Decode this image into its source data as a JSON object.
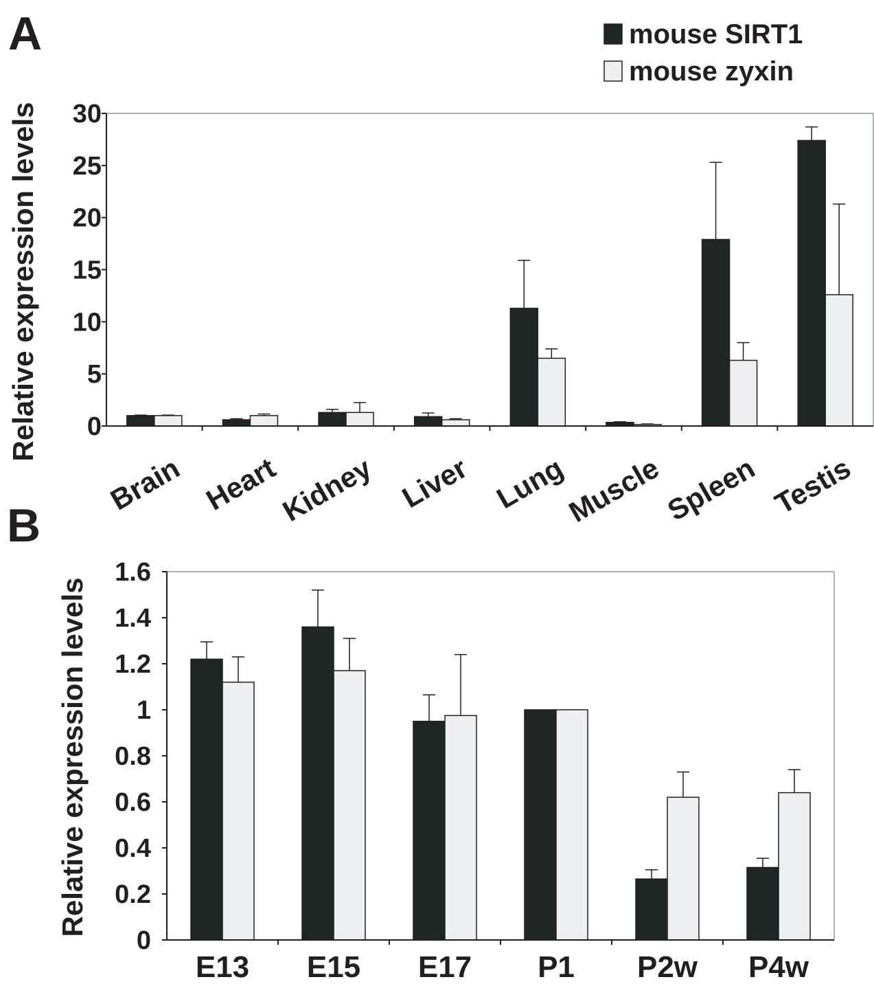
{
  "colors": {
    "sirt1": "#1f2725",
    "zyxin": "#eeeff0",
    "axis": "#231f20",
    "frame": "#8e9aa3"
  },
  "legend": {
    "items": [
      {
        "label": "mouse SIRT1",
        "color": "#1f2725"
      },
      {
        "label": "mouse zyxin",
        "color": "#eeeff0"
      }
    ],
    "placement": "top-right"
  },
  "chart_data": [
    {
      "panel_label": "A",
      "type": "bar",
      "ylabel": "Relative expression levels",
      "ylim": [
        0,
        30
      ],
      "yticks": [
        "0",
        "5",
        "10",
        "15",
        "20",
        "25",
        "30"
      ],
      "categories": [
        "Brain",
        "Heart",
        "Kidney",
        "Liver",
        "Lung",
        "Muscle",
        "Spleen",
        "Testis"
      ],
      "series": [
        {
          "name": "mouse SIRT1",
          "values": [
            1.0,
            0.6,
            1.3,
            0.9,
            11.3,
            0.35,
            17.9,
            27.4
          ],
          "errors": [
            0.05,
            0.1,
            0.3,
            0.35,
            4.6,
            0.05,
            7.4,
            1.3
          ]
        },
        {
          "name": "mouse zyxin",
          "values": [
            1.0,
            1.0,
            1.3,
            0.6,
            6.5,
            0.15,
            6.3,
            12.6
          ],
          "errors": [
            0.05,
            0.15,
            0.95,
            0.1,
            0.9,
            0.05,
            1.7,
            8.7
          ]
        }
      ],
      "grid": false
    },
    {
      "panel_label": "B",
      "type": "bar",
      "ylabel": "Relative expression levels",
      "ylim": [
        0,
        1.6
      ],
      "yticks": [
        "0",
        "0.2",
        "0.4",
        "0.6",
        "0.8",
        "1",
        "1.2",
        "1.4",
        "1.6"
      ],
      "categories": [
        "E13",
        "E15",
        "E17",
        "P1",
        "P2w",
        "P4w"
      ],
      "series": [
        {
          "name": "mouse SIRT1",
          "values": [
            1.22,
            1.36,
            0.95,
            1.0,
            0.265,
            0.315
          ],
          "errors": [
            0.075,
            0.16,
            0.115,
            0.0,
            0.04,
            0.04
          ]
        },
        {
          "name": "mouse zyxin",
          "values": [
            1.12,
            1.17,
            0.975,
            1.0,
            0.62,
            0.64
          ],
          "errors": [
            0.11,
            0.14,
            0.265,
            0.0,
            0.11,
            0.1
          ]
        }
      ],
      "grid": false
    }
  ]
}
